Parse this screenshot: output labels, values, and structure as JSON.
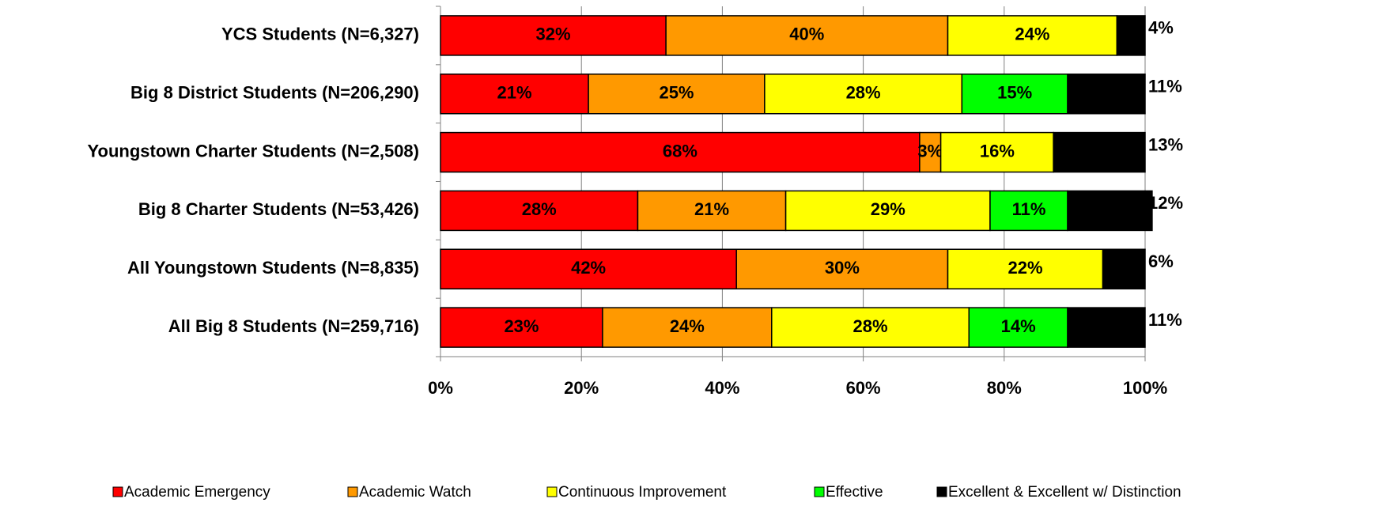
{
  "chart_data": {
    "type": "stacked-bar-horizontal",
    "categories": [
      "YCS Students (N=6,327)",
      "Big 8 District Students (N=206,290)",
      "Youngstown Charter Students (N=2,508)",
      "Big 8 Charter Students (N=53,426)",
      "All Youngstown Students (N=8,835)",
      "All Big 8 Students (N=259,716)"
    ],
    "series": [
      {
        "name": "Academic Emergency",
        "color": "#ff0000",
        "values": [
          32,
          21,
          68,
          28,
          42,
          23
        ],
        "value_labels": [
          "32%",
          "21%",
          "68%",
          "28%",
          "42%",
          "23%"
        ]
      },
      {
        "name": "Academic Watch",
        "color": "#ff9900",
        "values": [
          40,
          25,
          3,
          21,
          30,
          24
        ],
        "value_labels": [
          "40%",
          "25%",
          "3%",
          "21%",
          "30%",
          "24%"
        ]
      },
      {
        "name": "Continuous Improvement",
        "color": "#ffff00",
        "values": [
          24,
          28,
          16,
          29,
          22,
          28
        ],
        "value_labels": [
          "24%",
          "28%",
          "16%",
          "29%",
          "22%",
          "28%"
        ]
      },
      {
        "name": "Effective",
        "color": "#00ff00",
        "values": [
          null,
          15,
          null,
          11,
          null,
          14
        ],
        "value_labels": [
          null,
          "15%",
          null,
          "11%",
          null,
          "14%"
        ]
      },
      {
        "name": "Excellent & Excellent w/ Distinction",
        "color": "#000000",
        "values": [
          4,
          11,
          13,
          12,
          6,
          11
        ],
        "value_labels": [
          "4%",
          "11%",
          "13%",
          "12%",
          "6%",
          "11%"
        ]
      }
    ],
    "xlim": [
      0,
      100
    ],
    "xticks": [
      {
        "value": 0,
        "label": "0%"
      },
      {
        "value": 20,
        "label": "20%"
      },
      {
        "value": 40,
        "label": "40%"
      },
      {
        "value": 60,
        "label": "60%"
      },
      {
        "value": 80,
        "label": "80%"
      },
      {
        "value": 100,
        "label": "100%"
      }
    ],
    "grid": true,
    "legend": "bottom"
  }
}
